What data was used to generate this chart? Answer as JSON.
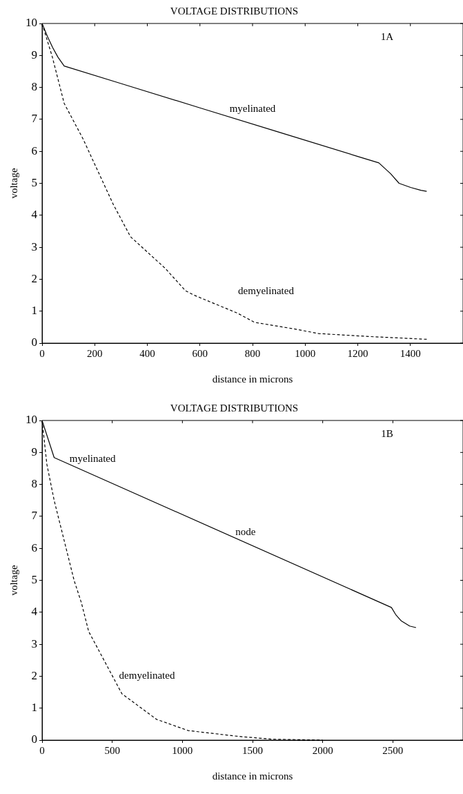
{
  "chart_data": [
    {
      "type": "line",
      "title": "VOLTAGE DISTRIBUTIONS",
      "xlabel": "distance in microns",
      "ylabel": "voltage",
      "xlim": [
        0,
        1600
      ],
      "xticks": [
        0,
        200,
        400,
        600,
        800,
        1000,
        1200,
        1400
      ],
      "ylim": [
        0,
        10
      ],
      "yticks": [
        0,
        1,
        2,
        3,
        4,
        5,
        6,
        7,
        8,
        9,
        10
      ],
      "grid": false,
      "legend": false,
      "marker": "none",
      "annotations": [
        "1A"
      ],
      "series": [
        {
          "name": "myelinated",
          "color": "#000000",
          "line_style": "solid",
          "x": [
            0,
            20,
            40,
            60,
            84,
            300,
            600,
            900,
            1200,
            1280,
            1325,
            1357,
            1401,
            1440,
            1462
          ],
          "values": [
            10,
            9.6,
            9.25,
            8.95,
            8.67,
            8.12,
            7.36,
            6.6,
            5.84,
            5.64,
            5.3,
            5.0,
            4.87,
            4.78,
            4.75
          ]
        },
        {
          "name": "demyelinated",
          "color": "#000000",
          "line_style": "dashed",
          "x": [
            0,
            39,
            84,
            155,
            270,
            336,
            468,
            545,
            578,
            742,
            808,
            962,
            1051,
            1260,
            1390,
            1462
          ],
          "values": [
            10,
            8.95,
            7.5,
            6.4,
            4.35,
            3.33,
            2.34,
            1.64,
            1.5,
            0.94,
            0.65,
            0.44,
            0.3,
            0.2,
            0.15,
            0.12
          ]
        }
      ]
    },
    {
      "type": "line",
      "title": "VOLTAGE DISTRIBUTIONS",
      "xlabel": "distance in microns",
      "ylabel": "voltage",
      "xlim": [
        0,
        3000
      ],
      "xticks": [
        0,
        500,
        1000,
        1500,
        2000,
        2500
      ],
      "ylim": [
        0,
        10
      ],
      "yticks": [
        0,
        1,
        2,
        3,
        4,
        5,
        6,
        7,
        8,
        9,
        10
      ],
      "grid": false,
      "legend": false,
      "marker": "none",
      "annotations": [
        "1B",
        {
          "text": "node",
          "x": 1450,
          "y": 6.2
        }
      ],
      "series": [
        {
          "name": "myelinated",
          "color": "#000000",
          "line_style": "solid",
          "x": [
            0,
            86,
            2490,
            2520,
            2560,
            2620,
            2665
          ],
          "values": [
            10,
            8.84,
            4.15,
            3.93,
            3.73,
            3.57,
            3.52
          ]
        },
        {
          "name": "demyelinated",
          "color": "#000000",
          "line_style": "dashed",
          "x": [
            0,
            34,
            86,
            228,
            280,
            332,
            569,
            816,
            1041,
            1393,
            1638,
            2000
          ],
          "values": [
            10,
            8.63,
            7.5,
            5.0,
            4.3,
            3.4,
            1.45,
            0.65,
            0.3,
            0.12,
            0.03,
            0.0
          ]
        }
      ]
    }
  ]
}
